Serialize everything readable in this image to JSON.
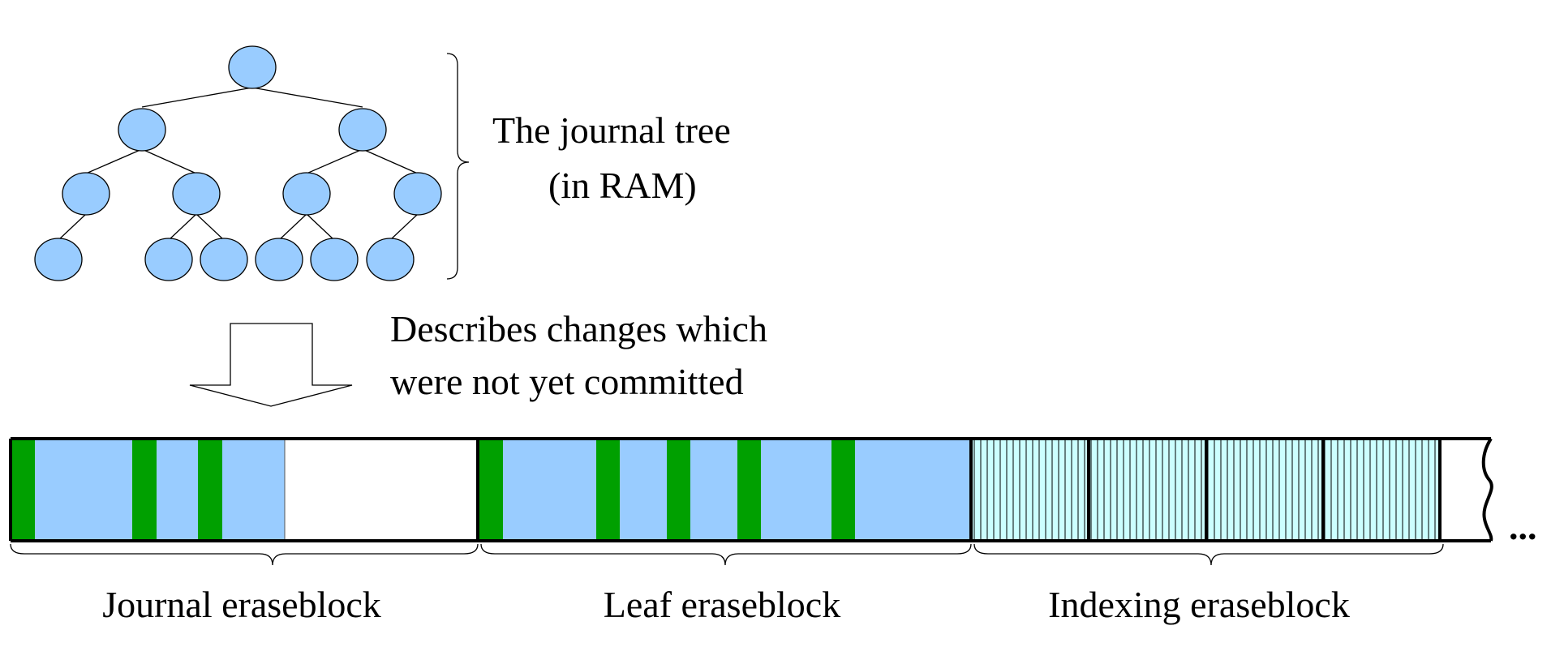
{
  "tree": {
    "label_line1": "The journal tree",
    "label_line2": "(in RAM)"
  },
  "arrow": {
    "label_line1": "Describes changes which",
    "label_line2": "were not yet committed"
  },
  "storage": {
    "journal_label": "Journal eraseblock",
    "leaf_label": "Leaf eraseblock",
    "indexing_label": "Indexing eraseblock",
    "ellipsis": "..."
  },
  "colors": {
    "node_fill": "#99ccff",
    "data_fill": "#99ccff",
    "header_fill": "#00a000",
    "index_fill": "#ccffff",
    "outline": "#000000"
  }
}
